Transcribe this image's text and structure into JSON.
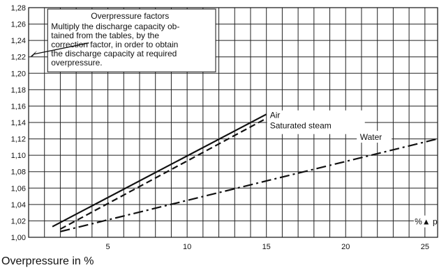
{
  "chart_data": {
    "type": "line",
    "xlabel": "Overpressure in %",
    "ylabel": "",
    "xlim": [
      0,
      25.8
    ],
    "ylim": [
      1.0,
      1.28
    ],
    "grid": true,
    "x_ticks": [
      {
        "value": 5,
        "label": "5"
      },
      {
        "value": 10,
        "label": "10"
      },
      {
        "value": 15,
        "label": "15"
      },
      {
        "value": 20,
        "label": "20"
      },
      {
        "value": 25,
        "label": "25"
      }
    ],
    "y_ticks": [
      {
        "value": 1.0,
        "label": "1,00"
      },
      {
        "value": 1.02,
        "label": "1,02"
      },
      {
        "value": 1.04,
        "label": "1,04"
      },
      {
        "value": 1.06,
        "label": "1,06"
      },
      {
        "value": 1.08,
        "label": "1,08"
      },
      {
        "value": 1.1,
        "label": "1,10"
      },
      {
        "value": 1.12,
        "label": "1,12"
      },
      {
        "value": 1.14,
        "label": "1,14"
      },
      {
        "value": 1.16,
        "label": "1,16"
      },
      {
        "value": 1.18,
        "label": "1,18"
      },
      {
        "value": 1.2,
        "label": "1,20"
      },
      {
        "value": 1.22,
        "label": "1,22"
      },
      {
        "value": 1.24,
        "label": "1,24"
      },
      {
        "value": 1.26,
        "label": "1,26"
      },
      {
        "value": 1.28,
        "label": "1,28"
      }
    ],
    "series": [
      {
        "name": "Air",
        "style": "solid",
        "x": [
          1.5,
          15
        ],
        "y": [
          1.013,
          1.15
        ]
      },
      {
        "name": "Saturated steam",
        "style": "dashed",
        "x": [
          2,
          15
        ],
        "y": [
          1.01,
          1.145
        ]
      },
      {
        "name": "Water",
        "style": "dashdot",
        "x": [
          2,
          25.8
        ],
        "y": [
          1.007,
          1.12
        ]
      }
    ],
    "annotations": {
      "title": "Overpressure factors",
      "lines": [
        "Multiply the discharge capacity ob-",
        "tained from the tables, by the",
        "correction factor, in order to obtain",
        "the discharge capacity at required",
        "overpressure."
      ],
      "arrow_target_y": 1.22,
      "delta_p_label": "%▲ p"
    }
  }
}
